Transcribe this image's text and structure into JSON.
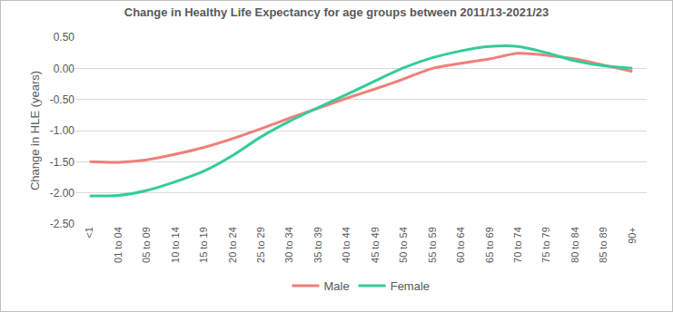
{
  "chart_data": {
    "type": "line",
    "title": "Change in Healthy Life Expectancy for age groups between 2011/13-2021/23",
    "y_label": "Change in HLE (years)",
    "categories": [
      "<1",
      "01 to 04",
      "05 to 09",
      "10 to 14",
      "15 to 19",
      "20 to 24",
      "25 to 29",
      "30 to 34",
      "35 to 39",
      "40 to 44",
      "45 to 49",
      "50 to 54",
      "55 to 59",
      "60 to 64",
      "65 to 69",
      "70 to 74",
      "75 to 79",
      "80 to 84",
      "85 to 89",
      "90+"
    ],
    "series": [
      {
        "name": "Male",
        "color": "#f07f7a",
        "values": [
          -1.5,
          -1.51,
          -1.47,
          -1.38,
          -1.27,
          -1.13,
          -0.97,
          -0.8,
          -0.64,
          -0.48,
          -0.33,
          -0.17,
          0.0,
          0.08,
          0.15,
          0.24,
          0.21,
          0.15,
          0.05,
          -0.05
        ]
      },
      {
        "name": "Female",
        "color": "#33cc99",
        "values": [
          -2.05,
          -2.04,
          -1.96,
          -1.82,
          -1.65,
          -1.4,
          -1.1,
          -0.85,
          -0.63,
          -0.42,
          -0.2,
          0.01,
          0.17,
          0.28,
          0.35,
          0.35,
          0.25,
          0.12,
          0.04,
          0.0
        ]
      }
    ],
    "ylim": [
      -2.5,
      0.5
    ],
    "yticks": [
      {
        "value": -2.5,
        "label": "-2.50"
      },
      {
        "value": -2.0,
        "label": "-2.00"
      },
      {
        "value": -1.5,
        "label": "-1.50"
      },
      {
        "value": -1.0,
        "label": "-1.00"
      },
      {
        "value": -0.5,
        "label": "-0.50"
      },
      {
        "value": 0,
        "label": "0.00"
      },
      {
        "value": 0.5,
        "label": "0.50"
      }
    ],
    "grid": true,
    "legend": "bottom",
    "line_style": "spline"
  }
}
